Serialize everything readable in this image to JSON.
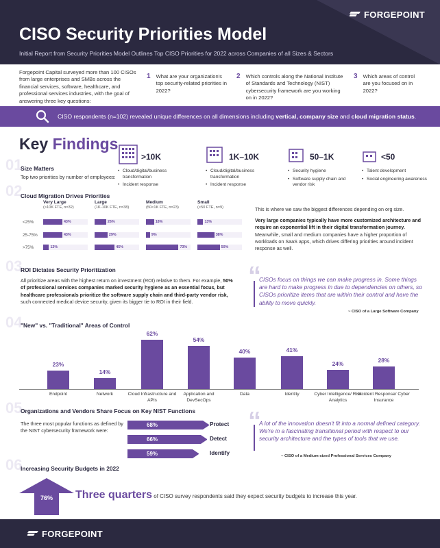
{
  "brand": "FORGEPOINT",
  "title": "CISO Security Priorities Model",
  "subtitle": "Initial Report from Security Priorities Model Outlines Top CISO Priorities for 2022 across Companies of all Sizes & Sectors",
  "intro": "Forgepoint Capital surveyed more than 100 CISOs from large enterprises and SMBs across the financial services, software, healthcare, and professional services industries, with the goal of answering three key questions:",
  "questions": [
    {
      "n": "1",
      "text": "What are your organization's top security-related priorities in 2022?"
    },
    {
      "n": "2",
      "text": "Which controls along the National Institute of Standards and Technology (NIST) cybersecurity framework are you working on in 2022?"
    },
    {
      "n": "3",
      "text": "Which areas of control are you focused on in 2022?"
    }
  ],
  "banner": {
    "pre": "CISO respondents (n=102) revealed unique differences on all dimensions including ",
    "b1": "vertical, company size",
    "mid": " and ",
    "b2": "cloud migration status",
    "post": "."
  },
  "key": {
    "a": "Key ",
    "b": "Findings"
  },
  "ghosts": [
    "01",
    "02",
    "03",
    "04",
    "05",
    "06"
  ],
  "s1": {
    "title": "Size Matters",
    "sub": "Top two priorities by number of employees:"
  },
  "sizes": [
    {
      "label": ">10K",
      "items": [
        "Cloud/digital/business transformation",
        "Incident response"
      ]
    },
    {
      "label": "1K–10K",
      "items": [
        "Cloud/digital/business transformation",
        "Incident response"
      ]
    },
    {
      "label": "50–1K",
      "items": [
        "Security hygiene",
        "Software supply chain and vendor risk"
      ]
    },
    {
      "label": "<50",
      "items": [
        "Talent development",
        "Social engineering awareness"
      ]
    }
  ],
  "s2": {
    "title": "Cloud Migration Drives Priorities"
  },
  "migration": {
    "cols": [
      {
        "name": "Very Large",
        "sub": "(>10K FTE, n=32)"
      },
      {
        "name": "Large",
        "sub": "(1K-10K FTE, n=38)"
      },
      {
        "name": "Medium",
        "sub": "(50<1K FTE, n=23)"
      },
      {
        "name": "Small",
        "sub": "(<50 FTE, n=9)"
      }
    ],
    "rows": [
      "<25%",
      "25-75%",
      ">75%"
    ],
    "values": [
      [
        43,
        26,
        18,
        13
      ],
      [
        43,
        29,
        9,
        38
      ],
      [
        13,
        45,
        73,
        50
      ]
    ],
    "labels": [
      [
        "43%",
        "26%",
        "18%",
        "13%"
      ],
      [
        "43%",
        "29%",
        "9%",
        "38%"
      ],
      [
        "13%",
        "45%",
        "73%",
        "50%"
      ]
    ]
  },
  "s2text": {
    "p1": "This is where we saw the biggest differences depending on org size.",
    "p2b": "Very large companies typically have more customized architecture and require an exponential lift in their digital transformation journey.",
    "p2": " Meanwhile, small and medium companies have a higher proportion of workloads on SaaS apps, which drives differing priorities around incident response as well."
  },
  "s3": {
    "title": "ROI Dictates Security Prioritization"
  },
  "s3text": {
    "a": "All prioritize areas with the highest return on investment (ROI) relative to them. For example, ",
    "b": "50% of professional services companies marked security hygiene as an essential focus, but healthcare professionals prioritize the software supply chain and third-party vendor risk,",
    "c": " such connected medical device security, given its bigger tie to ROI in their field."
  },
  "quote1": {
    "text": "CISOs focus on things we can make progress in. Some things are hard to make progress in due to dependencies on others, so CISOs prioritize items that are within their control and have the ability to move quickly.",
    "by": "~ CISO of a Large Software Company"
  },
  "s4": {
    "title": "\"New\" vs. \"Traditional\" Areas of Control"
  },
  "chart_data": {
    "type": "bar",
    "categories": [
      "Endpoint",
      "Network",
      "Cloud Infrastructure and APIs",
      "Application and DevSecOps",
      "Data",
      "Identity",
      "Cyber Intelligence/ Risk Analytics",
      "Incident Response/ Cyber Insurance"
    ],
    "values": [
      23,
      14,
      62,
      54,
      40,
      41,
      24,
      28
    ],
    "labels": [
      "23%",
      "14%",
      "62%",
      "54%",
      "40%",
      "41%",
      "24%",
      "28%"
    ],
    "ylim": [
      0,
      62
    ]
  },
  "s5": {
    "title": "Organizations and Vendors Share Focus on Key NIST Functions",
    "text": "The three most popular functions as defined by the NIST cybersecurity framework were:"
  },
  "nist": [
    {
      "label": "68%",
      "name": "Protect",
      "value": 68
    },
    {
      "label": "66%",
      "name": "Detect",
      "value": 66
    },
    {
      "label": "59%",
      "name": "Identify",
      "value": 59
    }
  ],
  "quote2": {
    "text": "A lot of the innovation doesn't fit into a normal defined category. We're in a fascinating transitional period with respect to our security architecture and the types of tools that we use.",
    "by": "~ CISO of a Medium-sized Professional Services Company"
  },
  "s6": {
    "title": "Increasing Security Budgets in 2022",
    "pct": "76%",
    "big": "Three quarters",
    "rest": " of CISO survey respondents said they expect security budgets to increase this year."
  }
}
